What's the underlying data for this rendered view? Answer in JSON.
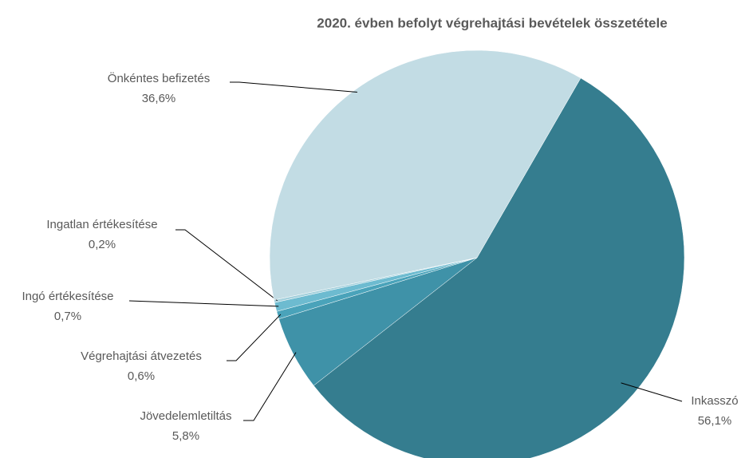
{
  "chart_data": {
    "type": "pie",
    "title": "2020. évben befolyt végrehajtási bevételek összetétele",
    "categories": [
      "Inkasszó",
      "Jövedelemletiltás",
      "Végrehajtási átvezetés",
      "Ingó értékesítése",
      "Ingatlan értékesítése",
      "Önkéntes befizetés"
    ],
    "values": [
      56.1,
      5.8,
      0.6,
      0.7,
      0.2,
      36.6
    ],
    "value_labels": [
      "56,1%",
      "5,8%",
      "0,6%",
      "0,7%",
      "0,2%",
      "36,6%"
    ],
    "colors": [
      "#357d8f",
      "#3f92a8",
      "#4aa3ba",
      "#6dbbd0",
      "#a3d0dc",
      "#c2dce4"
    ]
  }
}
